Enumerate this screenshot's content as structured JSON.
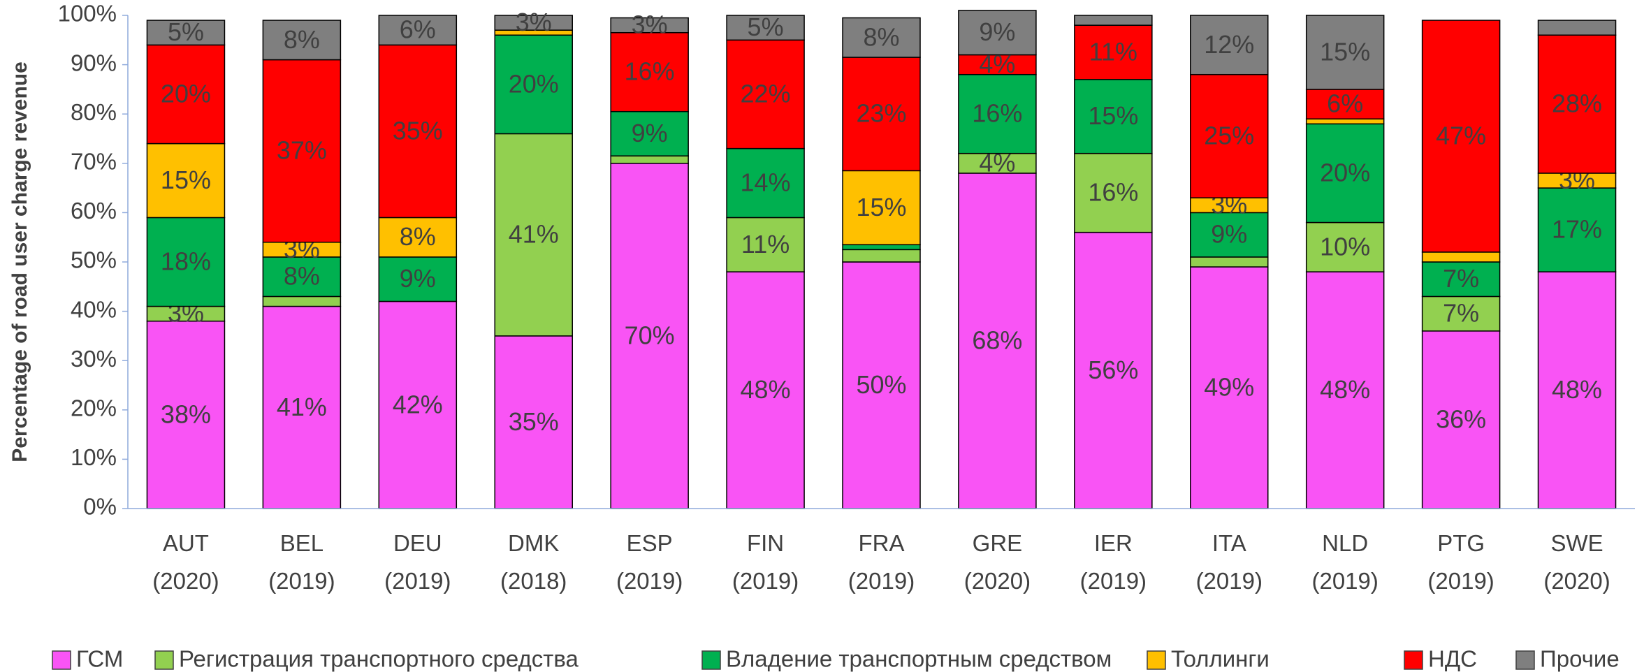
{
  "chart_data": {
    "type": "bar",
    "stacked": true,
    "y_label": "Percentage of road user charge revenue",
    "categories": [
      "AUT\n(2020)",
      "BEL\n(2019)",
      "DEU\n(2019)",
      "DMK\n(2018)",
      "ESP\n(2019)",
      "FIN\n(2019)",
      "FRA\n(2019)",
      "GRE\n(2020)",
      "IER\n(2019)",
      "ITA\n(2019)",
      "NLD\n(2019)",
      "PTG\n(2019)",
      "SWE\n(2020)"
    ],
    "series": [
      {
        "name": "ГСМ",
        "color": "#f954f5",
        "values": [
          38,
          41,
          42,
          35,
          70,
          48,
          50,
          68,
          56,
          49,
          48,
          36,
          48
        ],
        "value_labels": [
          "38%",
          "41%",
          "42%",
          "35%",
          "70%",
          "48%",
          "50%",
          "68%",
          "56%",
          "49%",
          "48%",
          "36%",
          "48%"
        ]
      },
      {
        "name": "Регистрация транспортного средства",
        "color": "#92d050",
        "values": [
          3,
          2,
          0,
          41,
          1.5,
          11,
          2.5,
          4,
          16,
          2,
          10,
          7,
          0
        ],
        "value_labels": [
          "3%",
          null,
          null,
          "41%",
          null,
          "11%",
          null,
          "4%",
          "16%",
          null,
          "10%",
          "7%",
          null
        ]
      },
      {
        "name": "Владение транспортным средством",
        "color": "#00b050",
        "values": [
          18,
          8,
          9,
          20,
          9,
          14,
          1,
          16,
          15,
          9,
          20,
          7,
          17
        ],
        "value_labels": [
          "18%",
          "8%",
          "9%",
          "20%",
          "9%",
          "14%",
          null,
          "16%",
          "15%",
          "9%",
          "20%",
          "7%",
          "17%"
        ]
      },
      {
        "name": "Толлинги",
        "color": "#ffc000",
        "values": [
          15,
          3,
          8,
          1,
          0,
          0,
          15,
          0,
          0,
          3,
          1,
          2,
          3
        ],
        "value_labels": [
          "15%",
          "3%",
          "8%",
          null,
          null,
          null,
          "15%",
          null,
          null,
          "3%",
          null,
          null,
          "3%"
        ]
      },
      {
        "name": "НДС",
        "color": "#ff0000",
        "values": [
          20,
          37,
          35,
          0,
          16,
          22,
          23,
          4,
          11,
          25,
          6,
          47,
          28
        ],
        "value_labels": [
          "20%",
          "37%",
          "35%",
          null,
          "16%",
          "22%",
          "23%",
          "4%",
          "11%",
          "25%",
          "6%",
          "47%",
          "28%"
        ]
      },
      {
        "name": "Прочие",
        "color": "#7f7f7f",
        "values": [
          5,
          8,
          6,
          3,
          3,
          5,
          8,
          9,
          2,
          12,
          15,
          0,
          3
        ],
        "value_labels": [
          "5%",
          "8%",
          "6%",
          "3%",
          "3%",
          "5%",
          "8%",
          "9%",
          null,
          "12%",
          "15%",
          null,
          null
        ]
      }
    ],
    "ylim": [
      0,
      100
    ],
    "yticks": [
      {
        "value": 0,
        "label": "0%"
      },
      {
        "value": 10,
        "label": "10%"
      },
      {
        "value": 20,
        "label": "20%"
      },
      {
        "value": 30,
        "label": "30%"
      },
      {
        "value": 40,
        "label": "40%"
      },
      {
        "value": 50,
        "label": "50%"
      },
      {
        "value": 60,
        "label": "60%"
      },
      {
        "value": 70,
        "label": "70%"
      },
      {
        "value": 80,
        "label": "80%"
      },
      {
        "value": 90,
        "label": "90%"
      },
      {
        "value": 100,
        "label": "100%"
      }
    ],
    "grid": false,
    "legend": "bottom"
  }
}
